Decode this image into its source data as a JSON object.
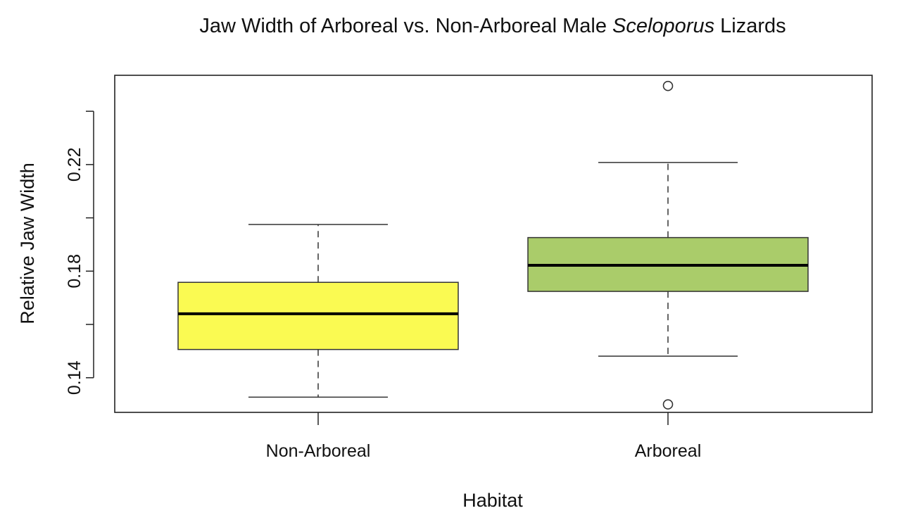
{
  "chart_data": {
    "type": "boxplot",
    "title": {
      "prefix": "Jaw Width of Arboreal vs. Non-Arboreal Male ",
      "italic": "Sceloporus",
      "suffix": " Lizards"
    },
    "xlabel": "Habitat",
    "ylabel": "Relative Jaw Width",
    "ylim": [
      0.127,
      0.2535
    ],
    "yticks": [
      0.14,
      0.16,
      0.18,
      0.2,
      0.22,
      0.24
    ],
    "ytick_labels": [
      "0.14",
      "",
      "0.18",
      "",
      "0.22",
      ""
    ],
    "grid": false,
    "legend": "none",
    "categories": [
      "Non-Arboreal",
      "Arboreal"
    ],
    "boxes": [
      {
        "category": "Non-Arboreal",
        "whisker_low": 0.1327,
        "q1": 0.1506,
        "median": 0.164,
        "q3": 0.1758,
        "whisker_high": 0.1975,
        "outliers": [],
        "color": "#fafa52"
      },
      {
        "category": "Arboreal",
        "whisker_low": 0.1481,
        "q1": 0.1724,
        "median": 0.1822,
        "q3": 0.1926,
        "whisker_high": 0.2208,
        "outliers": [
          0.2495,
          0.13
        ],
        "color": "#aacc6a"
      }
    ]
  }
}
